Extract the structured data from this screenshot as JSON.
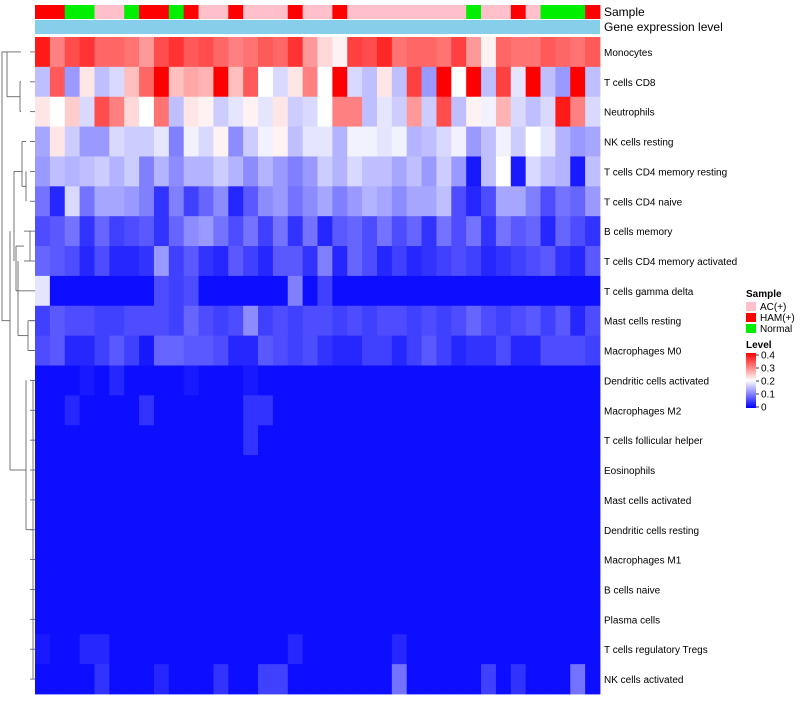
{
  "chart_data": {
    "type": "heatmap",
    "title": "",
    "annotation_tracks": [
      "Sample",
      "Gene expression level"
    ],
    "legend_sample": {
      "title": "Sample",
      "entries": [
        {
          "label": "AC(+)",
          "color": "#FFC0CB"
        },
        {
          "label": "HAM(+)",
          "color": "#FF0000"
        },
        {
          "label": "Normal",
          "color": "#00EE00"
        }
      ]
    },
    "legend_level": {
      "title": "Level",
      "ticks": [
        "0.4",
        "0.3",
        "0.2",
        "0.1",
        "0"
      ],
      "range": [
        0,
        0.4
      ],
      "colors": {
        "low": "#0000FF",
        "mid": "#FFFFFF",
        "high": "#FF0000",
        "mid_value": 0.2
      }
    },
    "gene_expression_color": "#87CEEB",
    "samples": [
      "HAM(+)",
      "HAM(+)",
      "Normal",
      "Normal",
      "AC(+)",
      "AC(+)",
      "Normal",
      "HAM(+)",
      "HAM(+)",
      "Normal",
      "HAM(+)",
      "AC(+)",
      "AC(+)",
      "HAM(+)",
      "AC(+)",
      "AC(+)",
      "AC(+)",
      "HAM(+)",
      "AC(+)",
      "AC(+)",
      "HAM(+)",
      "AC(+)",
      "AC(+)",
      "AC(+)",
      "AC(+)",
      "AC(+)",
      "AC(+)",
      "AC(+)",
      "AC(+)",
      "Normal",
      "AC(+)",
      "AC(+)",
      "HAM(+)",
      "AC(+)",
      "Normal",
      "Normal",
      "Normal",
      "HAM(+)"
    ],
    "rows": [
      {
        "name": "Monocytes",
        "values": [
          0.38,
          0.3,
          0.34,
          0.36,
          0.32,
          0.32,
          0.31,
          0.28,
          0.34,
          0.36,
          0.33,
          0.34,
          0.32,
          0.3,
          0.31,
          0.33,
          0.32,
          0.36,
          0.28,
          0.23,
          0.21,
          0.35,
          0.34,
          0.37,
          0.31,
          0.32,
          0.32,
          0.31,
          0.35,
          0.28,
          0.21,
          0.32,
          0.31,
          0.31,
          0.33,
          0.32,
          0.31,
          0.33
        ]
      },
      {
        "name": "T cells CD8",
        "values": [
          0.15,
          0.33,
          0.12,
          0.22,
          0.15,
          0.17,
          0.25,
          0.32,
          0.4,
          0.25,
          0.27,
          0.26,
          0.4,
          0.25,
          0.33,
          0.2,
          0.17,
          0.22,
          0.3,
          0.2,
          0.4,
          0.17,
          0.15,
          0.22,
          0.15,
          0.35,
          0.12,
          0.4,
          0.2,
          0.4,
          0.15,
          0.35,
          0.18,
          0.4,
          0.15,
          0.12,
          0.4,
          0.15
        ]
      },
      {
        "name": "Neutrophils",
        "values": [
          0.22,
          0.2,
          0.24,
          0.17,
          0.34,
          0.3,
          0.23,
          0.2,
          0.31,
          0.15,
          0.22,
          0.21,
          0.16,
          0.18,
          0.21,
          0.18,
          0.22,
          0.16,
          0.17,
          0.2,
          0.3,
          0.3,
          0.15,
          0.18,
          0.16,
          0.28,
          0.16,
          0.34,
          0.15,
          0.21,
          0.19,
          0.26,
          0.17,
          0.15,
          0.17,
          0.38,
          0.3,
          0.17
        ]
      },
      {
        "name": "NK cells resting",
        "values": [
          0.13,
          0.22,
          0.16,
          0.12,
          0.12,
          0.17,
          0.16,
          0.16,
          0.18,
          0.1,
          0.19,
          0.17,
          0.21,
          0.11,
          0.16,
          0.19,
          0.21,
          0.15,
          0.18,
          0.18,
          0.14,
          0.19,
          0.19,
          0.18,
          0.19,
          0.14,
          0.15,
          0.17,
          0.19,
          0.12,
          0.15,
          0.19,
          0.16,
          0.2,
          0.18,
          0.14,
          0.12,
          0.13
        ]
      },
      {
        "name": "T cells CD4 memory resting",
        "values": [
          0.12,
          0.15,
          0.14,
          0.15,
          0.16,
          0.14,
          0.16,
          0.1,
          0.14,
          0.11,
          0.14,
          0.14,
          0.16,
          0.14,
          0.11,
          0.14,
          0.12,
          0.1,
          0.12,
          0.16,
          0.14,
          0.17,
          0.15,
          0.15,
          0.13,
          0.15,
          0.12,
          0.16,
          0.12,
          0.02,
          0.15,
          0.2,
          0.02,
          0.17,
          0.15,
          0.14,
          0.02,
          0.15
        ]
      },
      {
        "name": "T cells CD4 naive",
        "values": [
          0.09,
          0.03,
          0.17,
          0.09,
          0.13,
          0.13,
          0.12,
          0.1,
          0.04,
          0.1,
          0.05,
          0.08,
          0.11,
          0.03,
          0.07,
          0.11,
          0.12,
          0.09,
          0.11,
          0.13,
          0.1,
          0.12,
          0.14,
          0.13,
          0.11,
          0.13,
          0.13,
          0.15,
          0.06,
          0.03,
          0.06,
          0.13,
          0.13,
          0.1,
          0.06,
          0.09,
          0.08,
          0.12
        ]
      },
      {
        "name": "B cells memory",
        "values": [
          0.06,
          0.07,
          0.09,
          0.04,
          0.08,
          0.05,
          0.06,
          0.07,
          0.04,
          0.08,
          0.11,
          0.12,
          0.09,
          0.06,
          0.09,
          0.05,
          0.09,
          0.04,
          0.09,
          0.03,
          0.07,
          0.08,
          0.06,
          0.09,
          0.06,
          0.08,
          0.04,
          0.09,
          0.06,
          0.09,
          0.04,
          0.09,
          0.07,
          0.08,
          0.03,
          0.08,
          0.06,
          0.04
        ]
      },
      {
        "name": "T cells CD4 memory activated",
        "values": [
          0.08,
          0.07,
          0.06,
          0.03,
          0.06,
          0.03,
          0.03,
          0.04,
          0.12,
          0.05,
          0.07,
          0.04,
          0.03,
          0.07,
          0.05,
          0.03,
          0.07,
          0.07,
          0.04,
          0.1,
          0.03,
          0.08,
          0.06,
          0.03,
          0.05,
          0.03,
          0.04,
          0.05,
          0.06,
          0.05,
          0.03,
          0.04,
          0.05,
          0.06,
          0.07,
          0.04,
          0.03,
          0.07
        ]
      },
      {
        "name": "T cells gamma delta",
        "values": [
          0.18,
          0.01,
          0.01,
          0.01,
          0.01,
          0.01,
          0.01,
          0.01,
          0.06,
          0.05,
          0.06,
          0.01,
          0.01,
          0.01,
          0.01,
          0.01,
          0.01,
          0.1,
          0.01,
          0.05,
          0.01,
          0.01,
          0.01,
          0.01,
          0.01,
          0.01,
          0.01,
          0.01,
          0.01,
          0.01,
          0.01,
          0.01,
          0.01,
          0.01,
          0.01,
          0.01,
          0.01,
          0.01
        ]
      },
      {
        "name": "Mast cells resting",
        "values": [
          0.05,
          0.07,
          0.06,
          0.06,
          0.05,
          0.05,
          0.06,
          0.06,
          0.06,
          0.05,
          0.08,
          0.06,
          0.05,
          0.06,
          0.11,
          0.05,
          0.06,
          0.05,
          0.06,
          0.06,
          0.05,
          0.06,
          0.05,
          0.06,
          0.06,
          0.05,
          0.06,
          0.05,
          0.06,
          0.08,
          0.06,
          0.05,
          0.06,
          0.07,
          0.05,
          0.07,
          0.03,
          0.06
        ]
      },
      {
        "name": "Macrophages M0",
        "values": [
          0.06,
          0.07,
          0.03,
          0.03,
          0.05,
          0.07,
          0.05,
          0.02,
          0.08,
          0.08,
          0.07,
          0.07,
          0.06,
          0.03,
          0.03,
          0.07,
          0.06,
          0.05,
          0.06,
          0.04,
          0.03,
          0.03,
          0.05,
          0.05,
          0.03,
          0.05,
          0.07,
          0.05,
          0.03,
          0.04,
          0.04,
          0.06,
          0.03,
          0.03,
          0.06,
          0.06,
          0.06,
          0.05
        ]
      },
      {
        "name": "Dendritic cells activated",
        "values": [
          0.01,
          0.01,
          0.01,
          0.02,
          0.01,
          0.03,
          0.01,
          0.01,
          0.01,
          0.01,
          0.02,
          0.01,
          0.01,
          0.01,
          0.02,
          0.01,
          0.01,
          0.01,
          0.01,
          0.01,
          0.01,
          0.01,
          0.01,
          0.01,
          0.01,
          0.01,
          0.01,
          0.01,
          0.01,
          0.01,
          0.01,
          0.01,
          0.01,
          0.01,
          0.01,
          0.01,
          0.01,
          0.01
        ]
      },
      {
        "name": "Macrophages M2",
        "values": [
          0.01,
          0.01,
          0.03,
          0.01,
          0.01,
          0.01,
          0.01,
          0.04,
          0.01,
          0.01,
          0.01,
          0.01,
          0.01,
          0.01,
          0.04,
          0.04,
          0.01,
          0.01,
          0.01,
          0.01,
          0.01,
          0.01,
          0.01,
          0.01,
          0.01,
          0.01,
          0.01,
          0.01,
          0.01,
          0.01,
          0.01,
          0.01,
          0.01,
          0.01,
          0.01,
          0.01,
          0.01,
          0.01
        ]
      },
      {
        "name": "T cells follicular helper",
        "values": [
          0.01,
          0.01,
          0.01,
          0.01,
          0.01,
          0.01,
          0.01,
          0.01,
          0.01,
          0.01,
          0.01,
          0.01,
          0.01,
          0.01,
          0.04,
          0.01,
          0.01,
          0.01,
          0.01,
          0.01,
          0.01,
          0.01,
          0.01,
          0.01,
          0.01,
          0.01,
          0.01,
          0.01,
          0.01,
          0.01,
          0.01,
          0.01,
          0.01,
          0.01,
          0.01,
          0.01,
          0.01,
          0.01
        ]
      },
      {
        "name": "Eosinophils",
        "values": [
          0.01,
          0.01,
          0.01,
          0.01,
          0.01,
          0.01,
          0.01,
          0.01,
          0.01,
          0.01,
          0.01,
          0.01,
          0.01,
          0.01,
          0.01,
          0.01,
          0.01,
          0.01,
          0.01,
          0.01,
          0.01,
          0.01,
          0.01,
          0.01,
          0.01,
          0.01,
          0.01,
          0.01,
          0.01,
          0.01,
          0.01,
          0.01,
          0.01,
          0.01,
          0.01,
          0.01,
          0.01,
          0.01
        ]
      },
      {
        "name": "Mast cells activated",
        "values": [
          0.01,
          0.01,
          0.01,
          0.01,
          0.01,
          0.01,
          0.01,
          0.01,
          0.01,
          0.01,
          0.01,
          0.01,
          0.01,
          0.01,
          0.01,
          0.01,
          0.01,
          0.01,
          0.01,
          0.01,
          0.01,
          0.01,
          0.01,
          0.01,
          0.01,
          0.01,
          0.01,
          0.01,
          0.01,
          0.01,
          0.01,
          0.01,
          0.01,
          0.01,
          0.01,
          0.01,
          0.01,
          0.01
        ]
      },
      {
        "name": "Dendritic cells resting",
        "values": [
          0.01,
          0.01,
          0.01,
          0.01,
          0.01,
          0.01,
          0.01,
          0.01,
          0.01,
          0.01,
          0.01,
          0.01,
          0.01,
          0.01,
          0.01,
          0.01,
          0.01,
          0.01,
          0.01,
          0.01,
          0.01,
          0.01,
          0.01,
          0.01,
          0.01,
          0.01,
          0.01,
          0.01,
          0.01,
          0.01,
          0.01,
          0.01,
          0.01,
          0.01,
          0.01,
          0.01,
          0.01,
          0.01
        ]
      },
      {
        "name": "Macrophages M1",
        "values": [
          0.01,
          0.01,
          0.01,
          0.01,
          0.01,
          0.01,
          0.01,
          0.01,
          0.01,
          0.01,
          0.01,
          0.01,
          0.01,
          0.01,
          0.01,
          0.01,
          0.01,
          0.01,
          0.01,
          0.01,
          0.01,
          0.01,
          0.01,
          0.01,
          0.01,
          0.01,
          0.01,
          0.01,
          0.01,
          0.01,
          0.01,
          0.01,
          0.01,
          0.01,
          0.01,
          0.01,
          0.01,
          0.01
        ]
      },
      {
        "name": "B cells naive",
        "values": [
          0.01,
          0.01,
          0.01,
          0.01,
          0.01,
          0.01,
          0.01,
          0.01,
          0.01,
          0.01,
          0.01,
          0.01,
          0.01,
          0.01,
          0.01,
          0.01,
          0.01,
          0.01,
          0.01,
          0.01,
          0.01,
          0.01,
          0.01,
          0.01,
          0.01,
          0.01,
          0.01,
          0.01,
          0.01,
          0.01,
          0.01,
          0.01,
          0.01,
          0.01,
          0.01,
          0.01,
          0.01,
          0.01
        ]
      },
      {
        "name": "Plasma cells",
        "values": [
          0.01,
          0.01,
          0.01,
          0.01,
          0.01,
          0.01,
          0.01,
          0.01,
          0.01,
          0.01,
          0.01,
          0.01,
          0.01,
          0.01,
          0.01,
          0.01,
          0.01,
          0.01,
          0.01,
          0.01,
          0.01,
          0.01,
          0.01,
          0.01,
          0.01,
          0.01,
          0.01,
          0.01,
          0.01,
          0.01,
          0.01,
          0.01,
          0.01,
          0.01,
          0.01,
          0.01,
          0.01,
          0.01
        ]
      },
      {
        "name": "T cells regulatory  Tregs",
        "values": [
          0.02,
          0.01,
          0.01,
          0.03,
          0.03,
          0.01,
          0.01,
          0.01,
          0.01,
          0.01,
          0.01,
          0.01,
          0.01,
          0.01,
          0.01,
          0.01,
          0.01,
          0.03,
          0.01,
          0.01,
          0.01,
          0.01,
          0.01,
          0.01,
          0.03,
          0.01,
          0.01,
          0.01,
          0.01,
          0.01,
          0.01,
          0.01,
          0.01,
          0.01,
          0.01,
          0.01,
          0.01,
          0.01
        ]
      },
      {
        "name": "NK cells activated",
        "values": [
          0.01,
          0.01,
          0.01,
          0.01,
          0.04,
          0.01,
          0.01,
          0.01,
          0.03,
          0.01,
          0.01,
          0.01,
          0.04,
          0.01,
          0.01,
          0.05,
          0.05,
          0.01,
          0.01,
          0.01,
          0.01,
          0.01,
          0.01,
          0.01,
          0.09,
          0.01,
          0.01,
          0.01,
          0.01,
          0.01,
          0.05,
          0.01,
          0.04,
          0.01,
          0.01,
          0.01,
          0.09,
          0.01
        ]
      }
    ]
  }
}
